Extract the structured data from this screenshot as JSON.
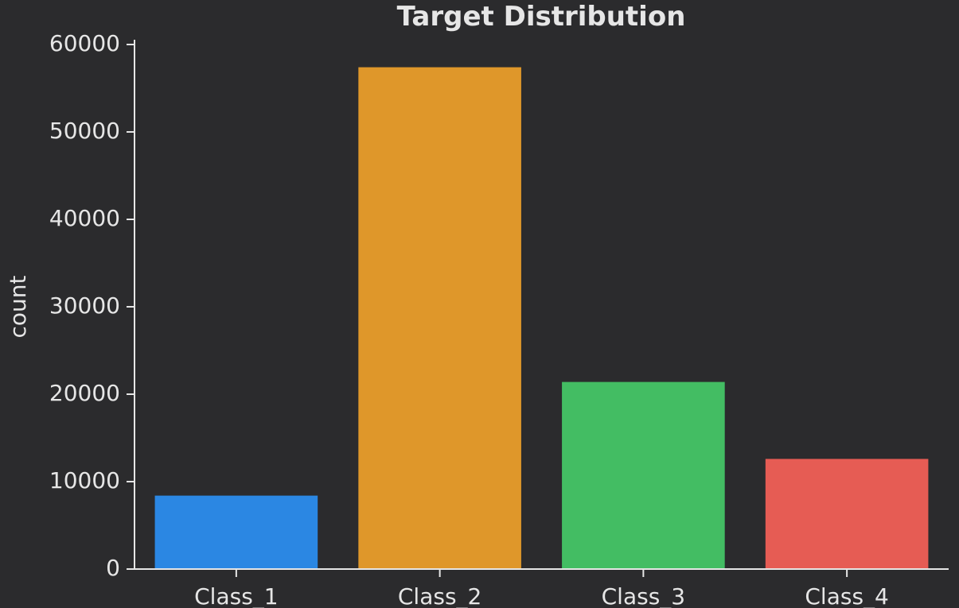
{
  "chart_data": {
    "type": "bar",
    "title": "Target Distribution",
    "xlabel": "",
    "ylabel": "count",
    "categories": [
      "Class_1",
      "Class_2",
      "Class_3",
      "Class_4"
    ],
    "values": [
      8400,
      57400,
      21400,
      12600
    ],
    "colors": [
      "#2b87e3",
      "#df972a",
      "#43bd63",
      "#e65c54"
    ],
    "ylim": [
      0,
      60000
    ],
    "yticks": [
      0,
      10000,
      20000,
      30000,
      40000,
      50000,
      60000
    ],
    "yticklabels": [
      "0",
      "10000",
      "20000",
      "30000",
      "40000",
      "50000",
      "60000"
    ],
    "grid": false,
    "legend": "none"
  }
}
